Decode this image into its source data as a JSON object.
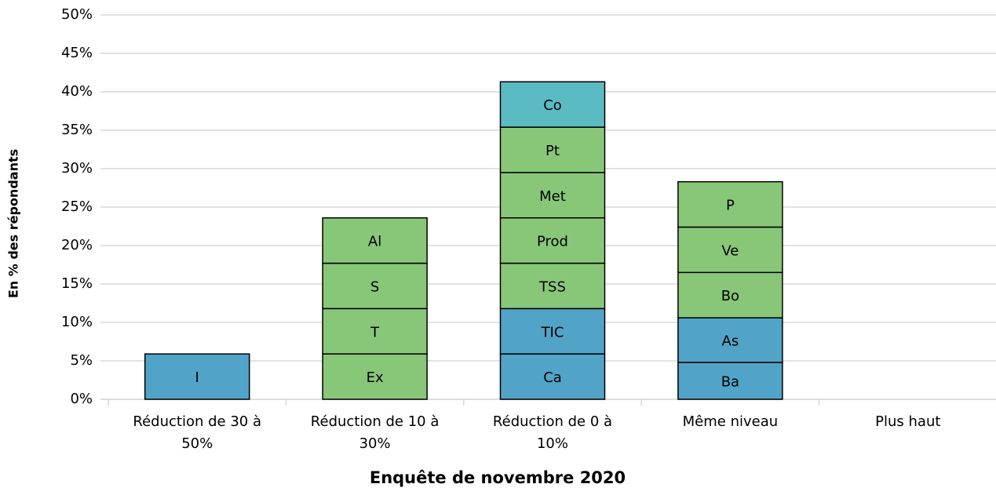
{
  "chart_data": {
    "type": "stacked-bar",
    "x_label": "Enquête de novembre 2020",
    "y_label": "En % des répondants",
    "categories": [
      "Réduction de 30 à 50%",
      "Réduction de 10 à 30%",
      "Réduction de 0 à 10%",
      "Même niveau",
      "Plus haut"
    ],
    "segments": [
      [
        {
          "label": "I",
          "value": 5.9,
          "color": "#52a3c8"
        }
      ],
      [
        {
          "label": "Ex",
          "value": 5.9,
          "color": "#88c778"
        },
        {
          "label": "T",
          "value": 5.9,
          "color": "#88c778"
        },
        {
          "label": "S",
          "value": 5.9,
          "color": "#88c778"
        },
        {
          "label": "Al",
          "value": 5.9,
          "color": "#88c778"
        }
      ],
      [
        {
          "label": "Ca",
          "value": 5.9,
          "color": "#52a3c8"
        },
        {
          "label": "TIC",
          "value": 5.9,
          "color": "#52a3c8"
        },
        {
          "label": "TSS",
          "value": 5.9,
          "color": "#88c778"
        },
        {
          "label": "Prod",
          "value": 5.9,
          "color": "#88c778"
        },
        {
          "label": "Met",
          "value": 5.9,
          "color": "#88c778"
        },
        {
          "label": "Pt",
          "value": 5.9,
          "color": "#88c778"
        },
        {
          "label": "Co",
          "value": 5.9,
          "color": "#5bbbc3"
        }
      ],
      [
        {
          "label": "Ba",
          "value": 4.8,
          "color": "#52a3c8"
        },
        {
          "label": "As",
          "value": 5.8,
          "color": "#52a3c8"
        },
        {
          "label": "Bo",
          "value": 5.9,
          "color": "#88c778"
        },
        {
          "label": "Ve",
          "value": 5.9,
          "color": "#88c778"
        },
        {
          "label": "P",
          "value": 5.9,
          "color": "#88c778"
        }
      ],
      []
    ],
    "ylim": [
      0,
      50
    ],
    "yticks": [
      {
        "value": 0,
        "label": "0%"
      },
      {
        "value": 5,
        "label": "5%"
      },
      {
        "value": 10,
        "label": "10%"
      },
      {
        "value": 15,
        "label": "15%"
      },
      {
        "value": 20,
        "label": "20%"
      },
      {
        "value": 25,
        "label": "25%"
      },
      {
        "value": 30,
        "label": "30%"
      },
      {
        "value": 35,
        "label": "35%"
      },
      {
        "value": 40,
        "label": "40%"
      },
      {
        "value": 45,
        "label": "45%"
      },
      {
        "value": 50,
        "label": "50%"
      }
    ],
    "grid": true
  }
}
